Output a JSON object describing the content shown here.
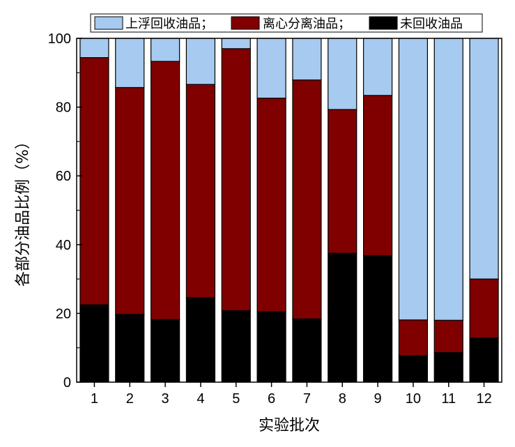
{
  "chart_data": {
    "type": "bar",
    "stacked": true,
    "title": "",
    "xlabel": "实验批次",
    "ylabel": "各部分油品比例（%）",
    "ylim": [
      0,
      100
    ],
    "yticks": [
      0,
      20,
      40,
      60,
      80,
      100
    ],
    "categories": [
      "1",
      "2",
      "3",
      "4",
      "5",
      "6",
      "7",
      "8",
      "9",
      "10",
      "11",
      "12"
    ],
    "legend_position": "top",
    "series": [
      {
        "name": "未回收油品",
        "color": "#000000",
        "values": [
          22.5,
          19.7,
          18.2,
          24.6,
          20.8,
          20.5,
          18.4,
          37.5,
          36.8,
          7.7,
          8.6,
          12.8
        ]
      },
      {
        "name": "离心分离油品",
        "color": "#800000",
        "values": [
          71.9,
          66.0,
          75.1,
          62.0,
          76.2,
          62.1,
          69.5,
          41.8,
          46.6,
          10.4,
          9.4,
          17.2
        ]
      },
      {
        "name": "上浮回收油品",
        "color": "#a6caf0",
        "values": [
          5.6,
          14.3,
          6.7,
          13.4,
          3.0,
          17.4,
          12.1,
          20.7,
          16.6,
          81.9,
          82.0,
          70.0
        ]
      }
    ],
    "legend_labels": [
      "上浮回收油品；",
      "离心分离油品；",
      "未回收油品"
    ]
  }
}
